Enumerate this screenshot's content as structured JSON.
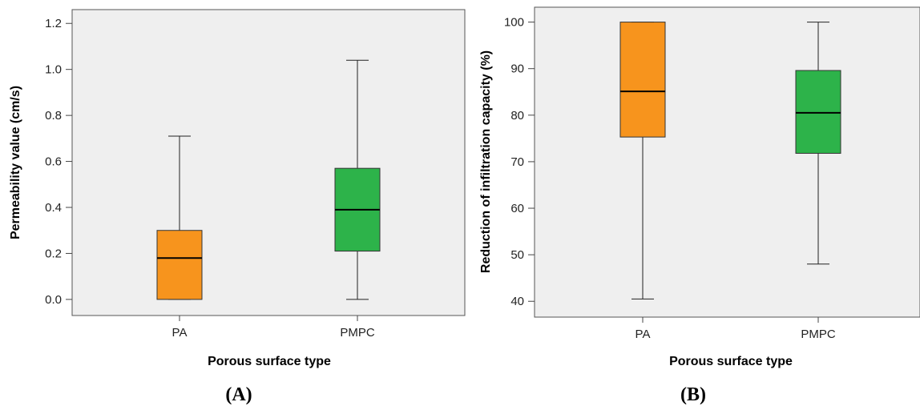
{
  "chart_data": [
    {
      "type": "box",
      "panel_label": "(A)",
      "xlabel": "Porous surface type",
      "ylabel": "Permeability value (cm/s)",
      "categories": [
        "PA",
        "PMPC"
      ],
      "ylim": [
        -0.07,
        1.26
      ],
      "yticks": [
        0.0,
        0.2,
        0.4,
        0.6,
        0.8,
        1.0,
        1.2
      ],
      "ytick_labels": [
        "0.0",
        "0.2",
        "0.4",
        "0.6",
        "0.8",
        "1.0",
        "1.2"
      ],
      "boxes": [
        {
          "category": "PA",
          "min": 0.0,
          "q1": 0.0,
          "median": 0.18,
          "q3": 0.3,
          "max": 0.71,
          "color": "#f7941d"
        },
        {
          "category": "PMPC",
          "min": 0.0,
          "q1": 0.21,
          "median": 0.39,
          "q3": 0.57,
          "max": 1.04,
          "color": "#2db34a"
        }
      ],
      "background": "#efefef",
      "grid": false
    },
    {
      "type": "box",
      "panel_label": "(B)",
      "xlabel": "Porous surface type",
      "ylabel": "Reduction of infiltration capacity (%)",
      "categories": [
        "PA",
        "PMPC"
      ],
      "ylim": [
        36.6,
        103.2
      ],
      "yticks": [
        40,
        50,
        60,
        70,
        80,
        90,
        100
      ],
      "ytick_labels": [
        "40",
        "50",
        "60",
        "70",
        "80",
        "90",
        "100"
      ],
      "boxes": [
        {
          "category": "PA",
          "min": 40.5,
          "q1": 75.3,
          "median": 85.1,
          "q3": 100,
          "max": 100,
          "color": "#f7941d"
        },
        {
          "category": "PMPC",
          "min": 48,
          "q1": 71.8,
          "median": 80.5,
          "q3": 89.6,
          "max": 100,
          "color": "#2db34a"
        }
      ],
      "background": "#efefef",
      "grid": false
    }
  ]
}
